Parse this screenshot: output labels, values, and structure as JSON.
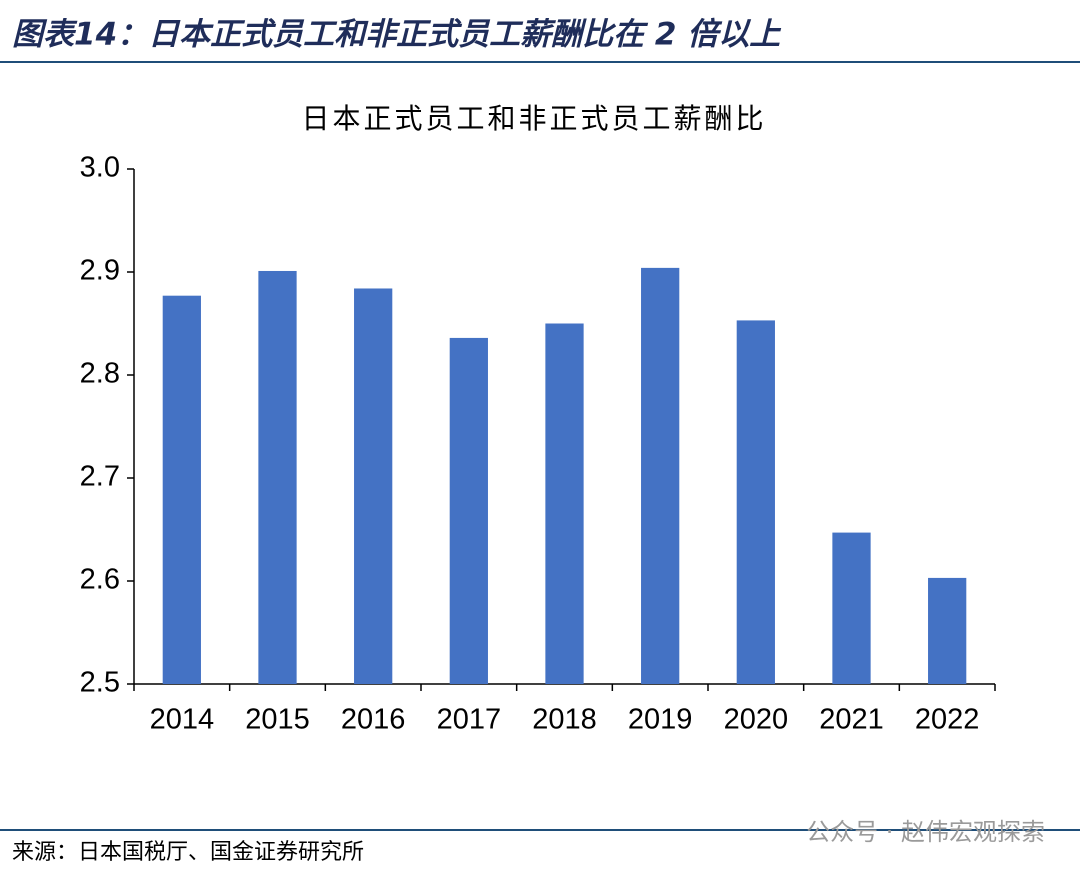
{
  "header": {
    "title": "图表14：日本正式员工和非正式员工薪酬比在 2 倍以上"
  },
  "chart_data": {
    "type": "bar",
    "title": "日本正式员工和非正式员工薪酬比",
    "categories": [
      "2014",
      "2015",
      "2016",
      "2017",
      "2018",
      "2019",
      "2020",
      "2021",
      "2022"
    ],
    "values": [
      2.877,
      2.901,
      2.884,
      2.836,
      2.85,
      2.904,
      2.853,
      2.647,
      2.603
    ],
    "color": "#4472c4",
    "ylim": [
      2.5,
      3.0
    ],
    "yticks": [
      2.5,
      2.6,
      2.7,
      2.8,
      2.9,
      {
        "value": 3.0,
        "label": "3.0"
      }
    ],
    "grid": false
  },
  "footer": {
    "source": "来源：日本国税厅、国金证券研究所",
    "watermark": "公众号 · 赵伟宏观探索"
  }
}
